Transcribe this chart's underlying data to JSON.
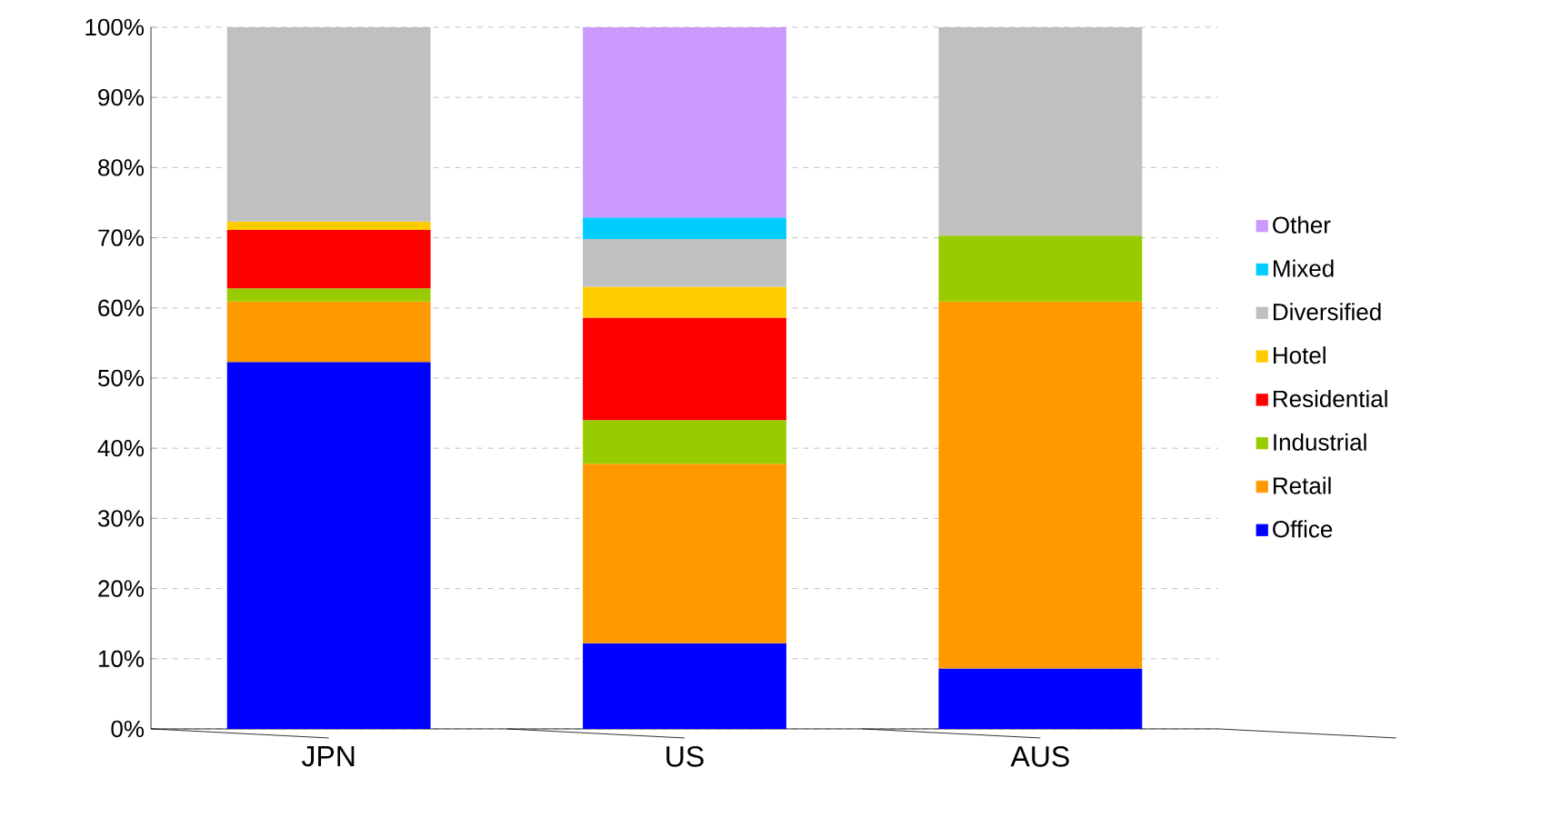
{
  "chart_data": {
    "type": "bar",
    "stacked": true,
    "categories": [
      "JPN",
      "US",
      "AUS"
    ],
    "series": [
      {
        "name": "Office",
        "color": "#0000ff",
        "values": [
          52.3,
          12.2,
          8.6
        ]
      },
      {
        "name": "Retail",
        "color": "#ff9900",
        "values": [
          8.6,
          25.6,
          52.3
        ]
      },
      {
        "name": "Industrial",
        "color": "#99cc00",
        "values": [
          1.9,
          6.2,
          9.4
        ]
      },
      {
        "name": "Residential",
        "color": "#ff0000",
        "values": [
          8.3,
          14.6,
          null
        ]
      },
      {
        "name": "Hotel",
        "color": "#ffcc00",
        "values": [
          1.2,
          4.4,
          null
        ]
      },
      {
        "name": "Diversified",
        "color": "#c0c0c0",
        "values": [
          27.7,
          6.8,
          29.7
        ]
      },
      {
        "name": "Mixed",
        "color": "#00ccff",
        "values": [
          null,
          3.1,
          null
        ]
      },
      {
        "name": "Other",
        "color": "#cc99ff",
        "values": [
          null,
          27.1,
          null
        ]
      }
    ],
    "ylim": [
      0,
      100
    ],
    "yticks": [
      {
        "value": 0,
        "label": "0%"
      },
      {
        "value": 10,
        "label": "10%"
      },
      {
        "value": 20,
        "label": "20%"
      },
      {
        "value": 30,
        "label": "30%"
      },
      {
        "value": 40,
        "label": "40%"
      },
      {
        "value": 50,
        "label": "50%"
      },
      {
        "value": 60,
        "label": "60%"
      },
      {
        "value": 70,
        "label": "70%"
      },
      {
        "value": 80,
        "label": "80%"
      },
      {
        "value": 90,
        "label": "90%"
      },
      {
        "value": 100,
        "label": "100%"
      }
    ],
    "grid": "y",
    "legend": "right"
  }
}
